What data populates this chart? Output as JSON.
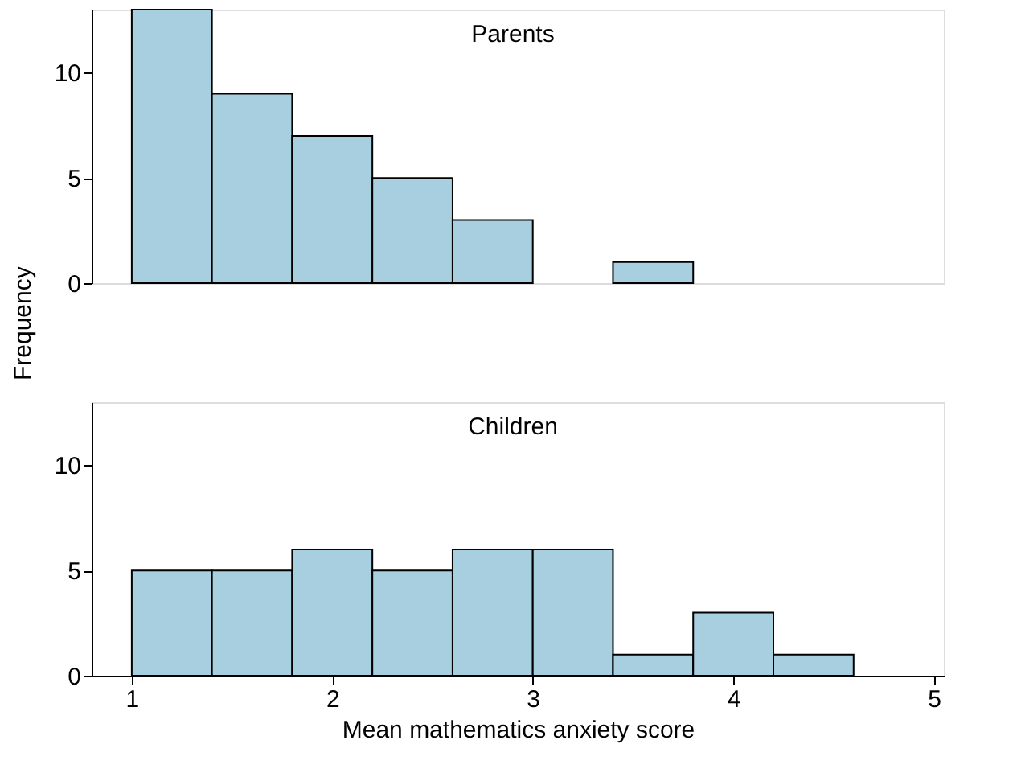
{
  "chart_data": [
    {
      "type": "histogram",
      "title": "Parents",
      "ylabel": "Frequency",
      "bins": [
        1.0,
        1.4,
        1.8,
        2.2,
        2.6,
        3.0,
        3.4,
        3.8,
        4.2,
        4.6
      ],
      "values": [
        13,
        9,
        7,
        5,
        3,
        0,
        1,
        0,
        0
      ],
      "color": "#a8cfe0",
      "xlim": [
        0.8,
        5.05
      ],
      "ylim": [
        0,
        13
      ],
      "yticks": [
        0,
        5,
        10
      ],
      "tick_labels": "y",
      "grid": false
    },
    {
      "type": "histogram",
      "title": "Children",
      "xlabel": "Mean mathematics anxiety score",
      "bins": [
        1.0,
        1.4,
        1.8,
        2.2,
        2.6,
        3.0,
        3.4,
        3.8,
        4.2,
        4.6
      ],
      "values": [
        5,
        5,
        6,
        5,
        6,
        6,
        1,
        3,
        1
      ],
      "color": "#a8cfe0",
      "xlim": [
        0.8,
        5.05
      ],
      "xticks": [
        1,
        2,
        3,
        4,
        5
      ],
      "ylim": [
        0,
        13
      ],
      "yticks": [
        0,
        5,
        10
      ],
      "grid": false
    }
  ]
}
